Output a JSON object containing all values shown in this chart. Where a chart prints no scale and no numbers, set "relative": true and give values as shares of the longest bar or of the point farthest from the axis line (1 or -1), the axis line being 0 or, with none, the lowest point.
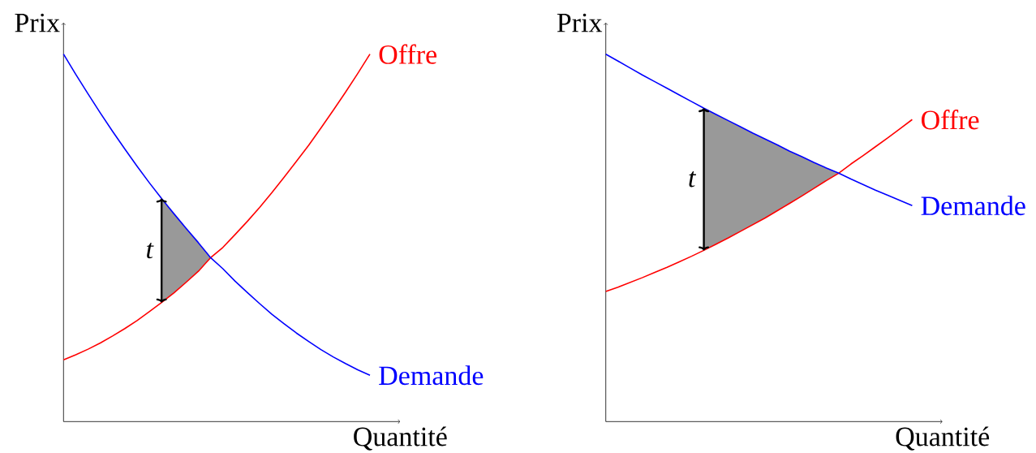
{
  "chart_data": [
    {
      "type": "line",
      "relative": true,
      "xlabel": "Quantité",
      "ylabel": "Prix",
      "marker": "none",
      "line_style": "solid",
      "categories": [
        null,
        null,
        null,
        null,
        null,
        null,
        null,
        null,
        null,
        null,
        null,
        null,
        null,
        null,
        null,
        null,
        null,
        null,
        null,
        null,
        null,
        null,
        null,
        null,
        null,
        null
      ],
      "series": [
        {
          "type": "area",
          "color": "#999999",
          "values": [
            null,
            null,
            null,
            null,
            null,
            null,
            null,
            null,
            0.607,
            0.566,
            0.526,
            0.487,
            0.446,
            null,
            null,
            null,
            null,
            null,
            null,
            null,
            null,
            null,
            null,
            null,
            null,
            null
          ]
        },
        {
          "name": "Offre",
          "color": "#ff0000",
          "values": [
            0.168,
            0.182,
            0.197,
            0.214,
            0.233,
            0.253,
            0.275,
            0.299,
            0.324,
            0.35,
            0.379,
            0.409,
            0.446,
            0.474,
            0.509,
            0.545,
            0.583,
            0.623,
            0.665,
            0.708,
            0.752,
            0.799,
            0.847,
            0.896,
            0.947,
            1.0
          ]
        },
        {
          "name": "Demande",
          "color": "#0000ff",
          "values": [
            1.0,
            0.945,
            0.892,
            0.84,
            0.79,
            0.742,
            0.695,
            0.65,
            0.607,
            0.566,
            0.526,
            0.487,
            0.446,
            0.416,
            0.382,
            0.351,
            0.321,
            0.292,
            0.266,
            0.241,
            0.218,
            0.196,
            0.176,
            0.158,
            0.141,
            0.126
          ]
        }
      ],
      "annotations": [
        "t"
      ]
    },
    {
      "type": "line",
      "relative": true,
      "xlabel": "Quantité",
      "ylabel": "Prix",
      "marker": "none",
      "line_style": "solid",
      "categories": [
        null,
        null,
        null,
        null,
        null,
        null,
        null,
        null,
        null,
        null,
        null,
        null,
        null,
        null,
        null,
        null,
        null,
        null,
        null,
        null,
        null,
        null,
        null,
        null,
        null,
        null
      ],
      "series": [
        {
          "type": "area",
          "color": "#999999",
          "values": [
            null,
            null,
            null,
            null,
            null,
            null,
            null,
            null,
            0.853,
            0.836,
            0.819,
            0.802,
            0.785,
            0.769,
            0.753,
            0.736,
            0.721,
            0.705,
            0.69,
            0.676,
            null,
            null,
            null,
            null,
            null,
            null
          ]
        },
        {
          "name": "Offre",
          "color": "#ff0000",
          "values": [
            0.354,
            0.366,
            0.379,
            0.392,
            0.406,
            0.42,
            0.435,
            0.45,
            0.466,
            0.483,
            0.5,
            0.518,
            0.536,
            0.554,
            0.574,
            0.594,
            0.614,
            0.635,
            0.656,
            0.676,
            0.701,
            0.724,
            0.748,
            0.772,
            0.797,
            0.822
          ]
        },
        {
          "name": "Demande",
          "color": "#0000ff",
          "values": [
            1.0,
            0.981,
            0.962,
            0.943,
            0.925,
            0.907,
            0.889,
            0.871,
            0.853,
            0.836,
            0.819,
            0.802,
            0.785,
            0.769,
            0.753,
            0.736,
            0.721,
            0.705,
            0.69,
            0.676,
            0.66,
            0.645,
            0.63,
            0.616,
            0.602,
            0.588
          ]
        }
      ],
      "annotations": [
        "t"
      ]
    }
  ]
}
